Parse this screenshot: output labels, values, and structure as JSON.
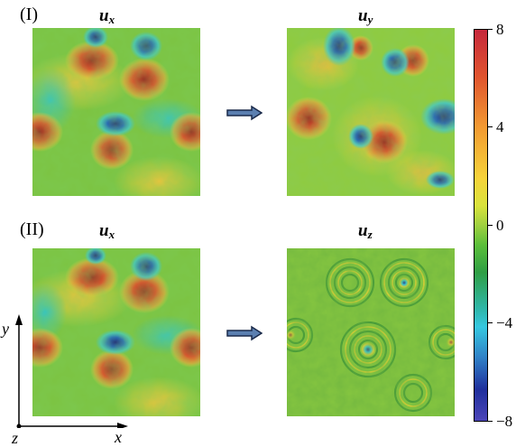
{
  "rows": [
    {
      "label": "(I)",
      "left_title_var": "u",
      "left_title_sub": "x",
      "right_title_var": "u",
      "right_title_sub": "y"
    },
    {
      "label": "(II)",
      "left_title_var": "u",
      "left_title_sub": "x",
      "right_title_var": "u",
      "right_title_sub": "z"
    }
  ],
  "colorbar": {
    "ticks": [
      "8",
      "4",
      "0",
      "−4",
      "−8"
    ],
    "max": 8,
    "min": -8
  },
  "axes": {
    "y_label": "y",
    "x_label": "x",
    "z_label": "z"
  },
  "colors": {
    "arrow_fill": "#5b7fb0",
    "arrow_stroke": "#1a2a4a"
  }
}
